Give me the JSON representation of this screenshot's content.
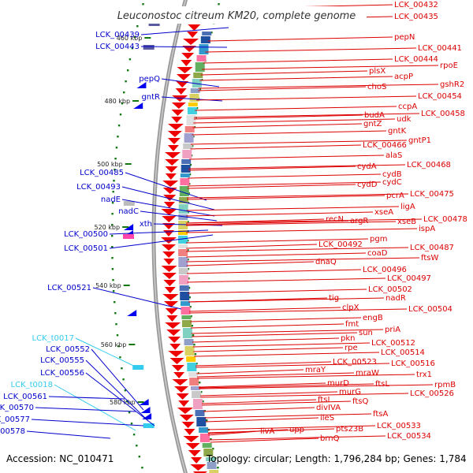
{
  "title": "Leuconostoc citreum KM20, complete genome",
  "footer": {
    "accession": "Accession: NC_010471",
    "topology": "Topology: circular; Length: 1,796,284 bp; Genes: 1,784"
  },
  "colors": {
    "forward_label": "#0000cc",
    "reverse_label": "#dd0000",
    "rna_label": "#33ccee",
    "backbone": "#999999",
    "gc_skew": "#117711",
    "forward_gene": "#0000ee",
    "reverse_gene": "#ee0000"
  },
  "scale_ticks": [
    "460 kbp",
    "480 kbp",
    "500 kbp",
    "520 kbp",
    "540 kbp",
    "560 kbp",
    "580 kbp"
  ],
  "forward_labels": [
    {
      "text": "LCK_00439",
      "type": "cds"
    },
    {
      "text": "LCK_00443",
      "type": "cds"
    },
    {
      "text": "pepQ",
      "type": "cds"
    },
    {
      "text": "gntR",
      "type": "cds"
    },
    {
      "text": "LCK_00485",
      "type": "cds"
    },
    {
      "text": "LCK_00493",
      "type": "cds"
    },
    {
      "text": "nadE",
      "type": "cds"
    },
    {
      "text": "nadC",
      "type": "cds"
    },
    {
      "text": "xth",
      "type": "cds"
    },
    {
      "text": "LCK_00500",
      "type": "cds"
    },
    {
      "text": "LCK_00501",
      "type": "cds"
    },
    {
      "text": "LCK_00521",
      "type": "cds"
    },
    {
      "text": "LCK_t0017",
      "type": "rna"
    },
    {
      "text": "LCK_00552",
      "type": "cds"
    },
    {
      "text": "LCK_00555",
      "type": "cds"
    },
    {
      "text": "LCK_00556",
      "type": "cds"
    },
    {
      "text": "LCK_t0018",
      "type": "rna"
    },
    {
      "text": "LCK_00561",
      "type": "cds"
    },
    {
      "text": "LCK_00570",
      "type": "cds"
    },
    {
      "text": "LCK_00577",
      "type": "cds"
    },
    {
      "text": "LCK_00578",
      "type": "cds"
    }
  ],
  "reverse_labels": [
    "LCK_00432",
    "LCK_00435",
    "pepN",
    "LCK_00441",
    "LCK_00444",
    "rpoE",
    "plsX",
    "acpP",
    "gshR2",
    "choS",
    "LCK_00454",
    "ccpA",
    "budA",
    "LCK_00458",
    "udk",
    "gntZ",
    "gntK",
    "gntP1",
    "LCK_00466",
    "alaS",
    "cydA",
    "LCK_00468",
    "cydB",
    "cydD",
    "cydC",
    "pcrA",
    "LCK_00475",
    "ligA",
    "xseA",
    "LCK_00478",
    "recN",
    "argR",
    "xseB",
    "ispA",
    "pgm",
    "LCK_00487",
    "LCK_00492",
    "coaD",
    "ftsW",
    "dnaQ",
    "LCK_00496",
    "LCK_00497",
    "LCK_00502",
    "nadR",
    "tig",
    "clpX",
    "LCK_00504",
    "engB",
    "fmt",
    "priA",
    "sun",
    "pkn",
    "LCK_00512",
    "rpe",
    "LCK_00514",
    "LCK_00523",
    "LCK_00516",
    "mraY",
    "mraW",
    "trx1",
    "rpmB",
    "murD",
    "ftsL",
    "LCK_00526",
    "murG",
    "ftsI",
    "ftsQ",
    "divIVA",
    "ftsA",
    "ileS",
    "LCK_00533",
    "livA",
    "upp",
    "pts23B",
    "LCK_00534",
    "brnQ"
  ]
}
